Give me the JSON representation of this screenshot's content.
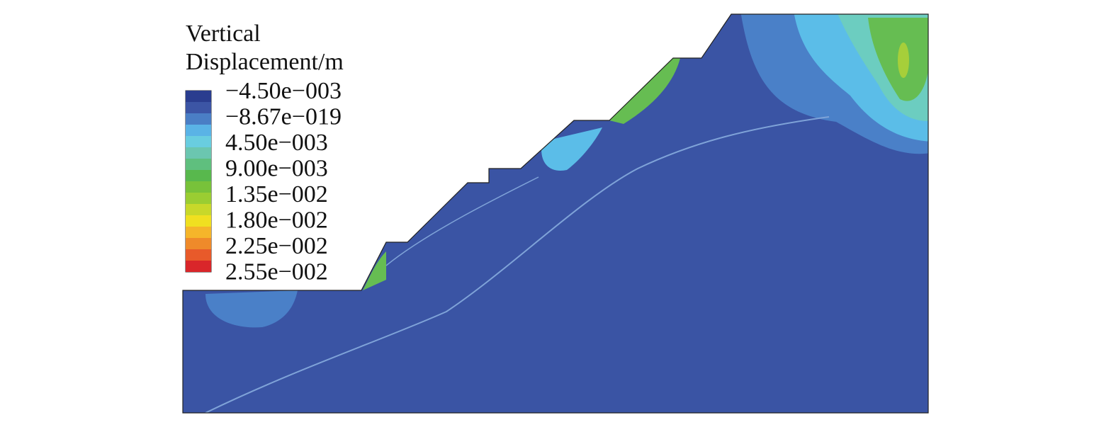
{
  "legend": {
    "title": [
      "Vertical",
      "Displacement/m"
    ],
    "labels": [
      "−4.50e−003",
      "−8.67e−019",
      "4.50e−003",
      "9.00e−003",
      "1.35e−002",
      "1.80e−002",
      "2.25e−002",
      "2.55e−002"
    ]
  }
}
